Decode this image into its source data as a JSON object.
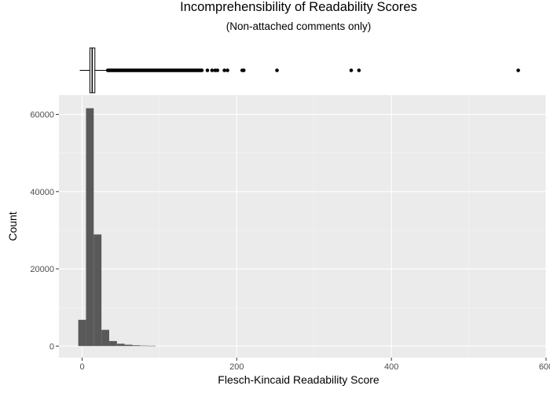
{
  "chart_data": {
    "type": "bar",
    "title": "Incomprehensibility of Readability Scores",
    "subtitle": "(Non-attached comments only)",
    "xlabel": "Flesch-Kincaid Readability Score",
    "ylabel": "Count",
    "xlim": [
      -30,
      600
    ],
    "ylim": [
      -3000,
      65000
    ],
    "x_ticks": [
      0,
      200,
      400,
      600
    ],
    "x_tick_labels": [
      "0",
      "200",
      "400",
      "600"
    ],
    "y_ticks": [
      0,
      20000,
      40000,
      60000
    ],
    "y_tick_labels": [
      "0",
      "20000",
      "40000",
      "60000"
    ],
    "bin_width": 10,
    "bins": [
      {
        "start": -5,
        "end": 5,
        "count": 6800
      },
      {
        "start": 5,
        "end": 15,
        "count": 61600
      },
      {
        "start": 15,
        "end": 25,
        "count": 28900
      },
      {
        "start": 25,
        "end": 35,
        "count": 4200
      },
      {
        "start": 35,
        "end": 45,
        "count": 1300
      },
      {
        "start": 45,
        "end": 55,
        "count": 600
      },
      {
        "start": 55,
        "end": 65,
        "count": 350
      },
      {
        "start": 65,
        "end": 75,
        "count": 200
      },
      {
        "start": 75,
        "end": 85,
        "count": 120
      },
      {
        "start": 85,
        "end": 95,
        "count": 80
      }
    ],
    "boxplot": {
      "min": -3,
      "q1": 10,
      "median": 13,
      "q3": 16.5,
      "whisker_high": 32,
      "dense_outlier_range": [
        33,
        155
      ],
      "outliers": [
        162,
        168,
        172,
        175,
        184,
        188,
        207,
        209,
        252,
        348,
        358,
        564
      ]
    },
    "grid": true,
    "legend": "none",
    "colors": {
      "bar": "#595959",
      "panel": "#ebebeb",
      "grid_major": "#ffffff",
      "grid_minor": "#f5f5f5",
      "tick_label": "#4d4d4d"
    }
  }
}
